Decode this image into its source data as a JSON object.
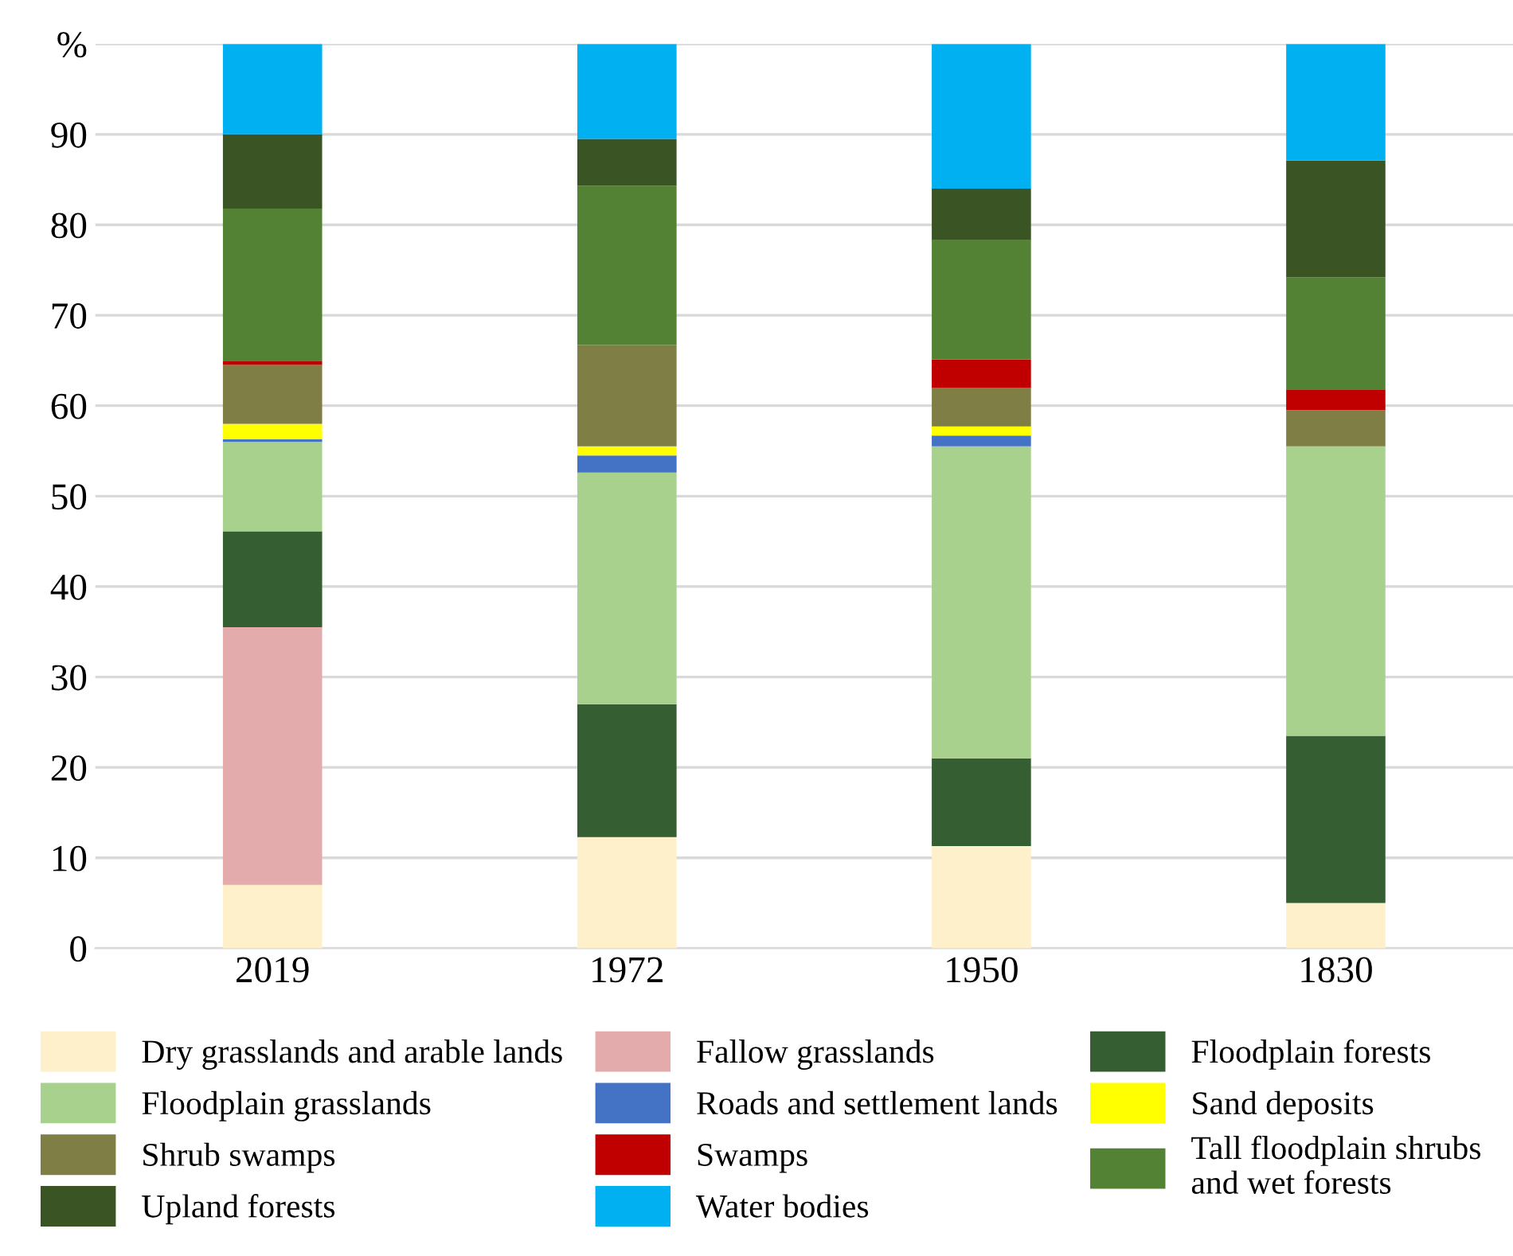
{
  "chart_data": {
    "type": "bar",
    "stacked": true,
    "categories": [
      "2019",
      "1972",
      "1950",
      "1830"
    ],
    "ylim": [
      0,
      100
    ],
    "yticks": [
      0,
      10,
      20,
      30,
      40,
      50,
      60,
      70,
      80,
      90,
      {
        "value": 100,
        "label": "%"
      }
    ],
    "grid": "y",
    "legend": "bottom",
    "series": [
      {
        "name": "Dry grasslands and arable lands",
        "color": "#fff0cc",
        "values": [
          7.0,
          12.3,
          11.3,
          5.0
        ]
      },
      {
        "name": "Fallow grasslands",
        "color": "#e3abab",
        "values": [
          28.5,
          0,
          0,
          0
        ]
      },
      {
        "name": "Floodplain forests",
        "color": "#355f32",
        "values": [
          10.6,
          14.7,
          9.7,
          18.5
        ]
      },
      {
        "name": "Floodplain grasslands",
        "color": "#a9d18e",
        "values": [
          9.9,
          25.6,
          34.5,
          32.0
        ]
      },
      {
        "name": "Roads and settlement lands",
        "color": "#4472c4",
        "values": [
          0.3,
          1.9,
          1.2,
          0
        ]
      },
      {
        "name": "Sand deposits",
        "color": "#ffff00",
        "values": [
          1.7,
          1.0,
          1.0,
          0
        ]
      },
      {
        "name": "Shrub swamps",
        "color": "#7f7f45",
        "values": [
          6.5,
          11.2,
          4.3,
          4.0
        ]
      },
      {
        "name": "Swamps",
        "color": "#c00000",
        "values": [
          0.4,
          0,
          3.1,
          2.3
        ]
      },
      {
        "name": "Tall floodplain shrubs\nand wet forests",
        "color": "#548235",
        "values": [
          16.9,
          17.6,
          13.2,
          12.4
        ]
      },
      {
        "name": "Upland forests",
        "color": "#3a5423",
        "values": [
          8.2,
          5.2,
          5.7,
          12.9
        ]
      },
      {
        "name": "Water bodies",
        "color": "#00b0f0",
        "values": [
          10.0,
          10.5,
          16.0,
          12.9
        ]
      }
    ]
  }
}
